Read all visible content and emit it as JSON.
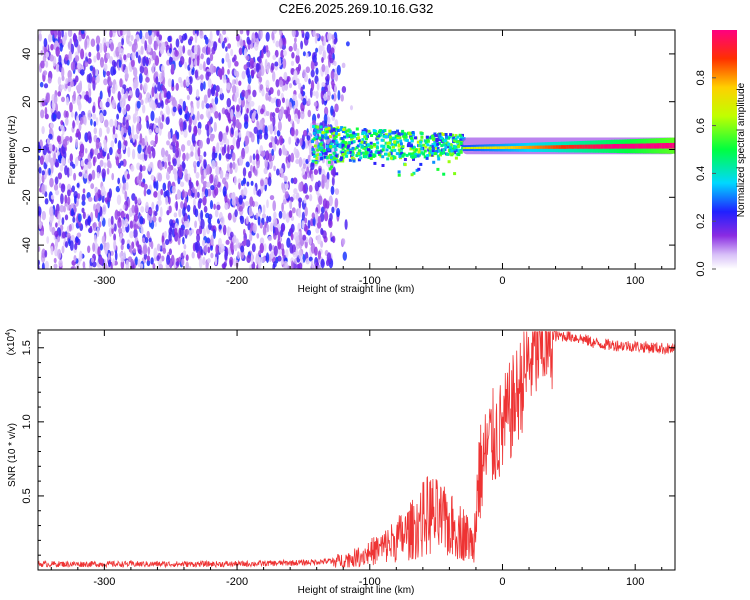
{
  "title": "C2E6.2025.269.10.16.G32",
  "chart_data": [
    {
      "type": "heatmap",
      "name": "spectrogram",
      "xlabel": "Height of straight line (km)",
      "ylabel": "Frequency (Hz)",
      "xlim": [
        -350,
        130
      ],
      "ylim": [
        -50,
        50
      ],
      "xticks": [
        -300,
        -200,
        -100,
        0,
        100
      ],
      "yticks": [
        -40,
        -20,
        0,
        20,
        40
      ],
      "colorbar": {
        "label": "Normalized spectral amplitude",
        "range": [
          0,
          1
        ],
        "ticks": [
          0.0,
          0.2,
          0.4,
          0.6,
          0.8
        ]
      },
      "description_regions": [
        {
          "x_from": -350,
          "x_to": -125,
          "pattern": "broadband noise",
          "amplitude": 0.12
        },
        {
          "x_from": -140,
          "x_to": -30,
          "pattern": "scattered signal near 0 Hz",
          "amplitude": 0.45
        },
        {
          "x_from": -30,
          "x_to": 130,
          "pattern": "strong narrow carrier near 0 Hz",
          "amplitude": 0.95
        }
      ]
    },
    {
      "type": "line",
      "name": "snr",
      "color": "#ee3333",
      "xlabel": "Height of straight line (km)",
      "ylabel": "SNR (10 * v/v)",
      "yscale_label": "(x10",
      "yscale_exp": "4",
      "xlim": [
        -350,
        130
      ],
      "ylim": [
        0,
        1.62
      ],
      "xticks": [
        -300,
        -200,
        -100,
        0,
        100
      ],
      "yticks": [
        "0.5",
        "1.0",
        "1.5"
      ],
      "ytick_values": [
        0.5,
        1.0,
        1.5
      ],
      "x": [
        -350,
        -300,
        -250,
        -200,
        -150,
        -130,
        -110,
        -90,
        -70,
        -55,
        -40,
        -30,
        -22,
        -18,
        -10,
        0,
        10,
        20,
        30,
        40,
        50,
        60,
        70,
        80,
        100,
        130
      ],
      "values": [
        0.04,
        0.04,
        0.04,
        0.04,
        0.05,
        0.06,
        0.1,
        0.18,
        0.3,
        0.45,
        0.35,
        0.3,
        0.2,
        0.62,
        0.85,
        0.95,
        1.15,
        1.4,
        1.52,
        1.58,
        1.58,
        1.56,
        1.53,
        1.52,
        1.51,
        1.49
      ]
    }
  ]
}
